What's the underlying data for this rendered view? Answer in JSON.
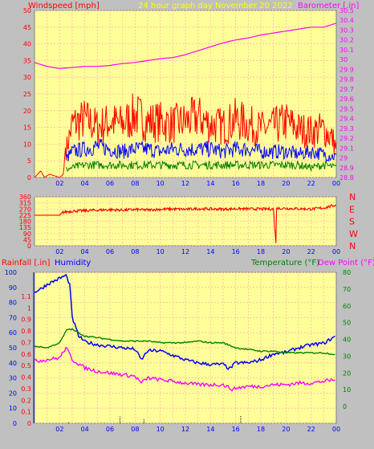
{
  "header": {
    "left_label": "Windspeed [mph]",
    "center_label": "24 hour graph day   November 20 2022",
    "right_label": "Barometer [.in]"
  },
  "lower_header": {
    "rain_label": "Rainfall [.in]",
    "humidity_label": "Humidity",
    "temp_label": "Temperature (°F)",
    "dew_label": "Dew Point (°F)"
  },
  "colors": {
    "plot_bg": "#ffff99",
    "frame_bg": "#c0c0c0",
    "grid": "#ffb3b3",
    "windspeed": "#ff0000",
    "wind_avg": "#0000ff",
    "wind_min": "#008000",
    "barometer": "#ff00ff",
    "direction": "#ff0000",
    "temperature": "#008000",
    "dew_point": "#ff00ff",
    "humidity": "#0000ff",
    "rain": "#000000",
    "rain_axis_text": "#0000ff",
    "humidity_axis_text": "#ff0000",
    "temp_axis_text": "#008000"
  },
  "time_ticks": [
    "02",
    "04",
    "06",
    "08",
    "10",
    "12",
    "14",
    "16",
    "18",
    "20",
    "22",
    "00"
  ],
  "chart_data": [
    {
      "type": "line",
      "ylabel": "Windspeed [mph]",
      "y2label": "Barometer [.in]",
      "ylim": [
        0,
        50
      ],
      "y_ticks": [
        "0",
        "5",
        "10",
        "15",
        "20",
        "25",
        "30",
        "35",
        "40",
        "45",
        "50"
      ],
      "y2lim": [
        28.8,
        30.5
      ],
      "y2_ticks": [
        "28.8",
        "28.9",
        "29",
        "29.1",
        "29.2",
        "29.3",
        "29.4",
        "29.5",
        "29.6",
        "29.7",
        "29.8",
        "29.9",
        "30",
        "30.1",
        "30.2",
        "30.3",
        "30.4",
        "30.5"
      ],
      "x_hours": [
        0,
        24
      ],
      "grid": true,
      "series": [
        {
          "name": "Windspeed [mph]",
          "key": "gust",
          "values": [
            [
              0.0,
              0
            ],
            [
              0.5,
              2
            ],
            [
              0.8,
              0
            ],
            [
              1.2,
              1
            ],
            [
              2.0,
              0
            ],
            [
              2.3,
              1
            ],
            [
              2.5,
              11
            ],
            [
              3,
              22
            ],
            [
              4,
              24
            ],
            [
              5,
              21
            ],
            [
              6,
              23
            ],
            [
              7,
              22
            ],
            [
              8,
              26
            ],
            [
              9,
              23
            ],
            [
              10,
              23
            ],
            [
              11,
              22
            ],
            [
              12,
              23
            ],
            [
              13,
              25
            ],
            [
              14,
              22
            ],
            [
              15,
              21
            ],
            [
              16,
              24
            ],
            [
              17,
              22
            ],
            [
              18,
              20
            ],
            [
              19,
              21
            ],
            [
              20,
              23
            ],
            [
              21,
              20
            ],
            [
              22,
              19
            ],
            [
              23,
              20
            ],
            [
              23.7,
              16
            ],
            [
              24,
              12
            ]
          ]
        },
        {
          "key": "avg",
          "values": [
            [
              2.5,
              7
            ],
            [
              3,
              10
            ],
            [
              4,
              11
            ],
            [
              5,
              12
            ],
            [
              6,
              11
            ],
            [
              7,
              10
            ],
            [
              8,
              11
            ],
            [
              9,
              11
            ],
            [
              10,
              10
            ],
            [
              11,
              11
            ],
            [
              12,
              11
            ],
            [
              13,
              11
            ],
            [
              14,
              11
            ],
            [
              15,
              10
            ],
            [
              16,
              11
            ],
            [
              17,
              11
            ],
            [
              18,
              10
            ],
            [
              19,
              10
            ],
            [
              20,
              10
            ],
            [
              21,
              9
            ],
            [
              22,
              10
            ],
            [
              23,
              9
            ],
            [
              24,
              8
            ]
          ]
        },
        {
          "key": "min",
          "values": [
            [
              2.5,
              3
            ],
            [
              3,
              4
            ],
            [
              4,
              5
            ],
            [
              5,
              5
            ],
            [
              6,
              5
            ],
            [
              7,
              5
            ],
            [
              8,
              5
            ],
            [
              9,
              5
            ],
            [
              10,
              5
            ],
            [
              11,
              5
            ],
            [
              12,
              5
            ],
            [
              13,
              5
            ],
            [
              14,
              5
            ],
            [
              15,
              5
            ],
            [
              16,
              5
            ],
            [
              17,
              5
            ],
            [
              18,
              5
            ],
            [
              19,
              5
            ],
            [
              20,
              5
            ],
            [
              21,
              5
            ],
            [
              22,
              4
            ],
            [
              23,
              5
            ],
            [
              24,
              4
            ]
          ]
        },
        {
          "name": "Barometer [.in]",
          "key": "baro",
          "axis": "y2",
          "values": [
            [
              0,
              29.97
            ],
            [
              1,
              29.93
            ],
            [
              2,
              29.91
            ],
            [
              3,
              29.92
            ],
            [
              4,
              29.93
            ],
            [
              5,
              29.93
            ],
            [
              6,
              29.94
            ],
            [
              7,
              29.96
            ],
            [
              8,
              29.97
            ],
            [
              9,
              29.99
            ],
            [
              10,
              30.01
            ],
            [
              11,
              30.02
            ],
            [
              12,
              30.05
            ],
            [
              13,
              30.09
            ],
            [
              14,
              30.13
            ],
            [
              15,
              30.17
            ],
            [
              16,
              30.2
            ],
            [
              17,
              30.22
            ],
            [
              18,
              30.25
            ],
            [
              19,
              30.27
            ],
            [
              20,
              30.29
            ],
            [
              21,
              30.31
            ],
            [
              22,
              30.33
            ],
            [
              23,
              30.33
            ],
            [
              24,
              30.37
            ]
          ]
        }
      ]
    },
    {
      "type": "line",
      "ylabel": "Wind direction",
      "ylim": [
        0,
        360
      ],
      "y_ticks": [
        "0",
        "45",
        "90",
        "135",
        "180",
        "225",
        "270",
        "315",
        "360"
      ],
      "y2_ticks": [
        "N",
        "W",
        "S",
        "E",
        "N"
      ],
      "x_hours": [
        0,
        24
      ],
      "grid": true,
      "series": [
        {
          "key": "dir",
          "values": [
            [
              0,
              225
            ],
            [
              2.0,
              225
            ],
            [
              2.2,
              245
            ],
            [
              3,
              255
            ],
            [
              4,
              258
            ],
            [
              5,
              262
            ],
            [
              6,
              265
            ],
            [
              7,
              262
            ],
            [
              8,
              266
            ],
            [
              9,
              263
            ],
            [
              10,
              268
            ],
            [
              11,
              270
            ],
            [
              12,
              268
            ],
            [
              13,
              272
            ],
            [
              14,
              270
            ],
            [
              15,
              269
            ],
            [
              16,
              272
            ],
            [
              17,
              271
            ],
            [
              18,
              270
            ],
            [
              19,
              270
            ],
            [
              19.2,
              20
            ],
            [
              19.25,
              275
            ],
            [
              20,
              275
            ],
            [
              21,
              272
            ],
            [
              22,
              270
            ],
            [
              23,
              278
            ],
            [
              24,
              300
            ]
          ]
        }
      ]
    },
    {
      "type": "line",
      "ylabel": "Humidity",
      "ylim": [
        0,
        100
      ],
      "y_ticks": [
        "0",
        "10",
        "20",
        "30",
        "40",
        "50",
        "60",
        "70",
        "80",
        "90",
        "100"
      ],
      "rain_ylim": [
        0,
        1.2
      ],
      "rain_ticks": [
        "0",
        "0.1",
        "0.2",
        "0.3",
        "0.4",
        "0.5",
        "0.6",
        "0.7",
        "0.8",
        "0.9",
        "1",
        "1.1"
      ],
      "y2lim": [
        -10,
        80
      ],
      "y2_ticks": [
        "0",
        "10",
        "20",
        "30",
        "40",
        "50",
        "60",
        "70",
        "80"
      ],
      "x_hours": [
        0,
        24
      ],
      "grid": true,
      "series": [
        {
          "name": "Humidity",
          "key": "hum",
          "values": [
            [
              0,
              87
            ],
            [
              0.5,
              89
            ],
            [
              1,
              92
            ],
            [
              1.5,
              94
            ],
            [
              2,
              96
            ],
            [
              2.5,
              98
            ],
            [
              2.8,
              92
            ],
            [
              3,
              70
            ],
            [
              3.5,
              58
            ],
            [
              4,
              54
            ],
            [
              5,
              52
            ],
            [
              6,
              51
            ],
            [
              7,
              50
            ],
            [
              8,
              49
            ],
            [
              8.5,
              42
            ],
            [
              9,
              48
            ],
            [
              10,
              48
            ],
            [
              11,
              45
            ],
            [
              12,
              42
            ],
            [
              13,
              40
            ],
            [
              14,
              39
            ],
            [
              15,
              39
            ],
            [
              15.5,
              36
            ],
            [
              16,
              40
            ],
            [
              17,
              40
            ],
            [
              18,
              42
            ],
            [
              19,
              46
            ],
            [
              20,
              47
            ],
            [
              21,
              50
            ],
            [
              22,
              52
            ],
            [
              23,
              53
            ],
            [
              24,
              58
            ]
          ]
        },
        {
          "name": "Temperature (°F)",
          "key": "temp",
          "axis": "temp",
          "values": [
            [
              0,
              36
            ],
            [
              1,
              35
            ],
            [
              2,
              38
            ],
            [
              2.6,
              46
            ],
            [
              3,
              46
            ],
            [
              4,
              42
            ],
            [
              5,
              41
            ],
            [
              6,
              40
            ],
            [
              7,
              39
            ],
            [
              8,
              39
            ],
            [
              9,
              39
            ],
            [
              10,
              38
            ],
            [
              11,
              38
            ],
            [
              12,
              38
            ],
            [
              13,
              39
            ],
            [
              14,
              38
            ],
            [
              15,
              38
            ],
            [
              16,
              35
            ],
            [
              17,
              34
            ],
            [
              18,
              33
            ],
            [
              19,
              33
            ],
            [
              20,
              32
            ],
            [
              21,
              32
            ],
            [
              22,
              32
            ],
            [
              23,
              32
            ],
            [
              24,
              31
            ]
          ]
        },
        {
          "name": "Dew Point (°F)",
          "key": "dew",
          "axis": "temp",
          "values": [
            [
              0,
              27
            ],
            [
              1,
              28
            ],
            [
              2,
              29
            ],
            [
              2.5,
              35
            ],
            [
              2.8,
              31
            ],
            [
              3,
              28
            ],
            [
              4,
              23
            ],
            [
              5,
              21
            ],
            [
              6,
              20
            ],
            [
              7,
              19
            ],
            [
              8,
              18
            ],
            [
              8.5,
              14
            ],
            [
              9,
              17
            ],
            [
              10,
              16
            ],
            [
              11,
              15
            ],
            [
              12,
              14
            ],
            [
              13,
              13
            ],
            [
              14,
              13
            ],
            [
              15,
              13
            ],
            [
              15.8,
              10
            ],
            [
              16,
              11
            ],
            [
              17,
              12
            ],
            [
              18,
              12
            ],
            [
              19,
              13
            ],
            [
              20,
              13
            ],
            [
              21,
              14
            ],
            [
              22,
              14
            ],
            [
              23,
              15
            ],
            [
              24,
              16
            ]
          ]
        },
        {
          "name": "Rainfall [.in]",
          "key": "rain",
          "axis": "rain",
          "values": [
            [
              2.7,
              0.01
            ],
            [
              6.8,
              0.06
            ],
            [
              8.7,
              0.04
            ],
            [
              16.4,
              0.07
            ]
          ]
        }
      ]
    }
  ]
}
